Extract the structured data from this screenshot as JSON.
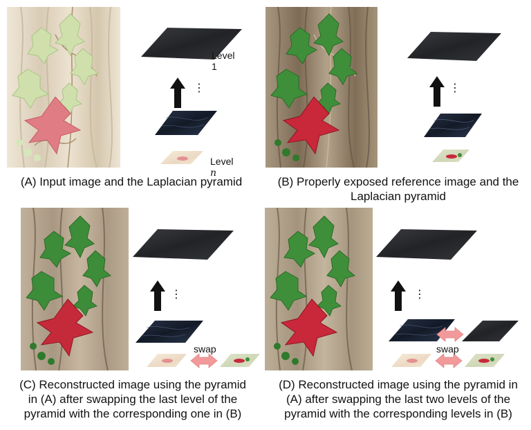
{
  "panels": {
    "a": {
      "caption": "(A) Input image and the Laplacian pyramid",
      "level_top_label": "Level 1",
      "level_bottom_prefix": "Level ",
      "level_bottom_var": "n"
    },
    "b": {
      "caption_line1": "(B) Properly exposed reference image and the",
      "caption_line2": "Laplacian pyramid"
    },
    "c": {
      "caption_line1": "(C) Reconstructed image using the pyramid",
      "caption_line2": "in (A) after swapping the last level of the",
      "caption_line3": "pyramid with the corresponding one in (B)",
      "swap_label": "swap"
    },
    "d": {
      "caption_line1": "(D) Reconstructed image using the pyramid in",
      "caption_line2": "(A) after swapping the last two levels of the",
      "caption_line3": "pyramid with the corresponding levels in (B)",
      "swap_label": "swap"
    }
  },
  "colors": {
    "bark_light": "#e7dccb",
    "bark_dark": "#9c8b73",
    "leaf_green": "#3f8f3a",
    "leaf_pale": "#c9dca6",
    "leaf_red": "#c8283a",
    "leaf_red_pale": "#e0707a",
    "pyramid_dark": "#2b2d31",
    "pyramid_blue": "#1c2433",
    "swap_arrow": "#f29a9a"
  },
  "icons": [
    "up-arrow-icon",
    "double-arrow-icon",
    "ellipsis-icon"
  ]
}
